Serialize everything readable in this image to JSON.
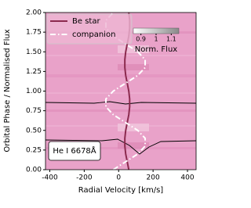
{
  "chart_data": {
    "type": "line",
    "xlabel": "Radial Velocity [km/s]",
    "ylabel": "Orbital Phase / Normalised Flux",
    "annotation": "He I 6678Å",
    "xlim": [
      -425,
      450
    ],
    "xticks": [
      -400,
      -200,
      0,
      200,
      400
    ],
    "ylim": [
      0,
      2
    ],
    "yticks": [
      {
        "value": 0,
        "label": "0.00"
      },
      {
        "value": 0.25,
        "label": "0.25"
      },
      {
        "value": 0.5,
        "label": "0.50"
      },
      {
        "value": 0.75,
        "label": "0.75"
      },
      {
        "value": 1,
        "label": "1.00"
      },
      {
        "value": 1.25,
        "label": "1.25"
      },
      {
        "value": 1.5,
        "label": "1.50"
      },
      {
        "value": 1.75,
        "label": "1.75"
      },
      {
        "value": 2,
        "label": "2.00"
      }
    ],
    "y": [
      0,
      0.1,
      0.2,
      0.3,
      0.4,
      0.5,
      0.6,
      0.7,
      0.8,
      0.9,
      1.0,
      1.1,
      1.2,
      1.3,
      1.4,
      1.5,
      1.6,
      1.7,
      1.8,
      1.9,
      2.0
    ],
    "series": [
      {
        "name": "Be star",
        "color": "#8b2a4e",
        "dash": "solid",
        "x": [
          59,
          50,
          41,
          36,
          36,
          41,
          50,
          59,
          64,
          64,
          59,
          50,
          41,
          36,
          36,
          41,
          50,
          59,
          64,
          64,
          59
        ]
      },
      {
        "name": "companion",
        "color": "#ffffff",
        "dash": "dashdot",
        "x": [
          -31,
          40,
          111,
          154,
          154,
          111,
          40,
          -31,
          -74,
          -74,
          -31,
          40,
          111,
          154,
          154,
          111,
          40,
          -31,
          -74,
          -74,
          -31
        ]
      }
    ],
    "colorbar": {
      "label": "Norm. Flux",
      "lim": [
        0.85,
        1.15
      ],
      "ticks": [
        0.9,
        1.0,
        1.1
      ]
    }
  }
}
